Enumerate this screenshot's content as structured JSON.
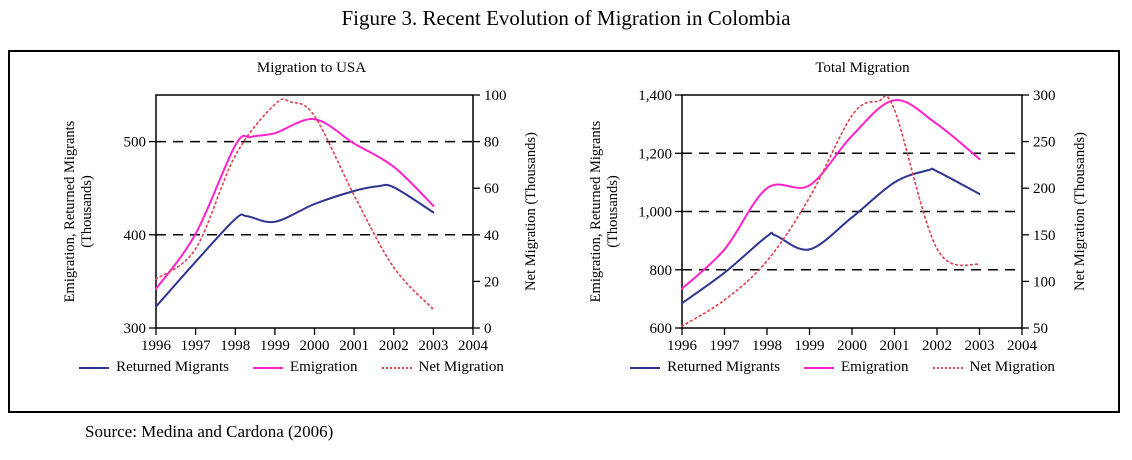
{
  "figure": {
    "title": "Figure 3. Recent Evolution of Migration in Colombia",
    "source": "Source: Medina and Cardona (2006)"
  },
  "colors": {
    "returned_migrants": "#2f3590",
    "emigration": "#ff22cc",
    "net_migration": "#dd4455",
    "axis": "#000000",
    "gridline": "#000000",
    "text": "#000000"
  },
  "chart_data": [
    {
      "type": "line",
      "title": "Migration to USA",
      "x_range": [
        1996,
        2004
      ],
      "x_ticks": [
        "1996",
        "1997",
        "1998",
        "1999",
        "2000",
        "2001",
        "2002",
        "2003",
        "2004"
      ],
      "grid": "dashed-horizontal",
      "legend_position": "bottom",
      "left_axis": {
        "label_line1": "Emigration, Returned Migrants",
        "label_line2": "(Thousands)",
        "range": [
          300,
          550
        ],
        "tick_values": [
          300,
          400,
          500
        ],
        "tick_labels": [
          "300",
          "400",
          "500"
        ]
      },
      "right_axis": {
        "label": "Net Migration (Thousands)",
        "range": [
          0,
          100
        ],
        "tick_values": [
          0,
          20,
          40,
          60,
          80,
          100
        ],
        "tick_labels": [
          "0",
          "20",
          "40",
          "60",
          "80",
          "100"
        ]
      },
      "gridlines_left_values": [
        400,
        500
      ],
      "series": [
        {
          "name": "Returned Migrants",
          "axis": "left",
          "line": "solid",
          "color_key": "returned_migrants",
          "x": [
            1996,
            1997,
            1998,
            1998.3,
            1999,
            2000,
            2001,
            2001.6,
            2002,
            2003
          ],
          "values": [
            323,
            371,
            417,
            420,
            414,
            433,
            447,
            452,
            451,
            424
          ]
        },
        {
          "name": "Emigration",
          "axis": "left",
          "line": "solid",
          "color_key": "emigration",
          "x": [
            1996,
            1997,
            1998,
            1998.4,
            1999,
            2000,
            2001,
            2002,
            2003
          ],
          "values": [
            342,
            401,
            496,
            505,
            509,
            524,
            498,
            473,
            431
          ]
        },
        {
          "name": "Net Migration",
          "axis": "right",
          "line": "dotted",
          "color_key": "net_migration",
          "x": [
            1996,
            1997,
            1998,
            1999,
            1999.4,
            2000,
            2001,
            2002,
            2003
          ],
          "values": [
            21,
            34,
            74,
            96,
            97,
            91,
            57,
            26,
            8
          ]
        }
      ]
    },
    {
      "type": "line",
      "title": "Total Migration",
      "x_range": [
        1996,
        2004
      ],
      "x_ticks": [
        "1996",
        "1997",
        "1998",
        "1999",
        "2000",
        "2001",
        "2002",
        "2003",
        "2004"
      ],
      "grid": "dashed-horizontal",
      "legend_position": "bottom",
      "left_axis": {
        "label_line1": "Emigration, Returned Migrants",
        "label_line2": "(Thousands)",
        "range": [
          600,
          1400
        ],
        "tick_values": [
          600,
          800,
          1000,
          1200,
          1400
        ],
        "tick_labels": [
          "600",
          "800",
          "1,000",
          "1,200",
          "1,400"
        ]
      },
      "right_axis": {
        "label": "Net Migration (Thousands)",
        "range": [
          50,
          300
        ],
        "tick_values": [
          50,
          100,
          150,
          200,
          250,
          300
        ],
        "tick_labels": [
          "50",
          "100",
          "150",
          "200",
          "250",
          "300"
        ]
      },
      "gridlines_left_values": [
        800,
        1000,
        1200
      ],
      "series": [
        {
          "name": "Returned Migrants",
          "axis": "left",
          "line": "solid",
          "color_key": "returned_migrants",
          "x": [
            1996,
            1997,
            1998,
            1998.2,
            1999,
            2000,
            2001,
            2001.8,
            2002,
            2003
          ],
          "values": [
            685,
            790,
            915,
            918,
            870,
            980,
            1100,
            1142,
            1138,
            1060
          ]
        },
        {
          "name": "Emigration",
          "axis": "left",
          "line": "solid",
          "color_key": "emigration",
          "x": [
            1996,
            1997,
            1998,
            1999,
            2000,
            2001,
            2002,
            2003
          ],
          "values": [
            735,
            870,
            1080,
            1090,
            1260,
            1382,
            1300,
            1180
          ]
        },
        {
          "name": "Net Migration",
          "axis": "right",
          "line": "dotted",
          "color_key": "net_migration",
          "x": [
            1996,
            1997,
            1998,
            1999,
            2000,
            2000.6,
            2001,
            2002,
            2003
          ],
          "values": [
            52,
            80,
            122,
            190,
            278,
            293,
            284,
            135,
            118
          ]
        }
      ]
    }
  ]
}
